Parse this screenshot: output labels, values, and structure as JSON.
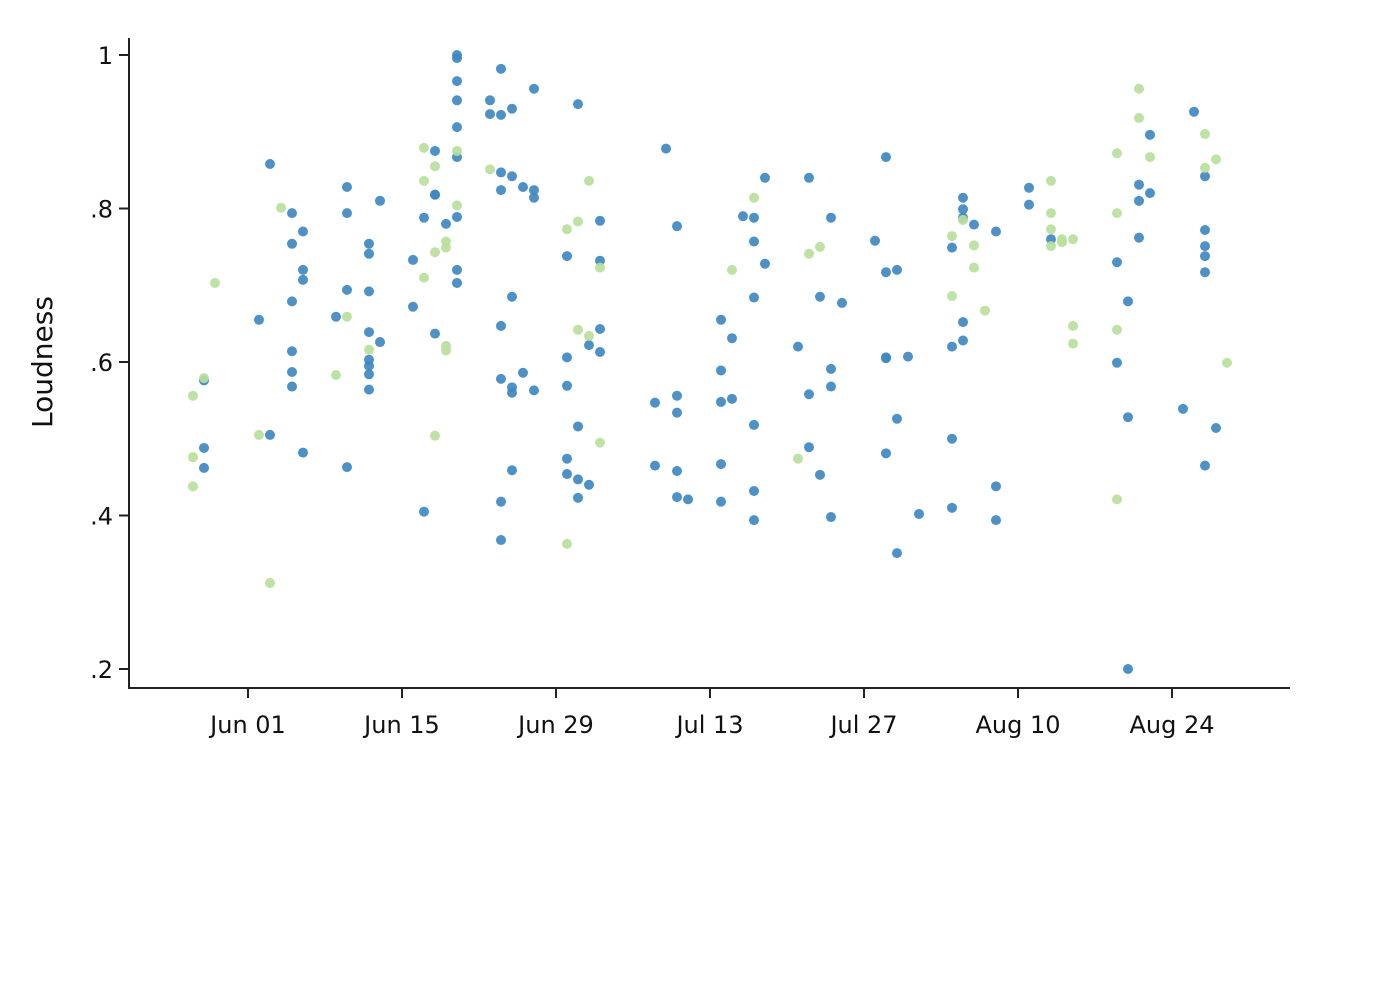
{
  "chart_data": {
    "type": "scatter",
    "title": "",
    "xlabel": "",
    "ylabel": "Loudness",
    "ylim": [
      0.175,
      1.025
    ],
    "yticks": [
      {
        "value": 1.0,
        "label": "1"
      },
      {
        "value": 0.8,
        "label": ".8"
      },
      {
        "value": 0.6,
        "label": ".6"
      },
      {
        "value": 0.4,
        "label": ".4"
      },
      {
        "value": 0.2,
        "label": ".2"
      }
    ],
    "xaxis": {
      "unit": "days since Jun 01",
      "range_days": [
        -11,
        95
      ],
      "ticks": [
        {
          "day": 0,
          "label": "Jun 01"
        },
        {
          "day": 14,
          "label": "Jun 15"
        },
        {
          "day": 28,
          "label": "Jun 29"
        },
        {
          "day": 42,
          "label": "Jul 13"
        },
        {
          "day": 56,
          "label": "Jul 27"
        },
        {
          "day": 70,
          "label": "Aug 10"
        },
        {
          "day": 84,
          "label": "Aug 24"
        }
      ]
    },
    "grid": false,
    "legend": null,
    "colors": {
      "blue": "#3f88c1",
      "green": "#b9e09c",
      "axis": "#222222"
    },
    "series": [
      {
        "name": "blue",
        "color": "#3f88c1",
        "points": [
          [
            -4,
            0.576
          ],
          [
            -4,
            0.488
          ],
          [
            -4,
            0.462
          ],
          [
            1,
            0.655
          ],
          [
            2,
            0.858
          ],
          [
            2,
            0.505
          ],
          [
            4,
            0.794
          ],
          [
            4,
            0.754
          ],
          [
            5,
            0.77
          ],
          [
            5,
            0.72
          ],
          [
            5,
            0.707
          ],
          [
            4,
            0.679
          ],
          [
            4,
            0.614
          ],
          [
            4,
            0.587
          ],
          [
            4,
            0.568
          ],
          [
            5,
            0.482
          ],
          [
            8,
            0.659
          ],
          [
            9,
            0.828
          ],
          [
            9,
            0.794
          ],
          [
            9,
            0.694
          ],
          [
            9,
            0.463
          ],
          [
            11,
            0.754
          ],
          [
            11,
            0.741
          ],
          [
            11,
            0.692
          ],
          [
            11,
            0.639
          ],
          [
            11,
            0.603
          ],
          [
            11,
            0.595
          ],
          [
            11,
            0.584
          ],
          [
            11,
            0.564
          ],
          [
            12,
            0.81
          ],
          [
            12,
            0.626
          ],
          [
            15,
            0.733
          ],
          [
            15,
            0.672
          ],
          [
            16,
            0.788
          ],
          [
            16,
            0.405
          ],
          [
            17,
            0.875
          ],
          [
            17,
            0.818
          ],
          [
            17,
            0.818
          ],
          [
            17,
            0.637
          ],
          [
            18,
            0.78
          ],
          [
            19,
            1.0
          ],
          [
            19,
            0.996
          ],
          [
            19,
            0.966
          ],
          [
            19,
            0.941
          ],
          [
            19,
            0.906
          ],
          [
            19,
            0.867
          ],
          [
            19,
            0.789
          ],
          [
            19,
            0.72
          ],
          [
            19,
            0.703
          ],
          [
            22,
            0.941
          ],
          [
            22,
            0.923
          ],
          [
            23,
            0.982
          ],
          [
            23,
            0.922
          ],
          [
            23,
            0.847
          ],
          [
            23,
            0.824
          ],
          [
            23,
            0.647
          ],
          [
            23,
            0.578
          ],
          [
            23,
            0.418
          ],
          [
            23,
            0.368
          ],
          [
            24,
            0.93
          ],
          [
            24,
            0.842
          ],
          [
            24,
            0.685
          ],
          [
            24,
            0.567
          ],
          [
            24,
            0.56
          ],
          [
            24,
            0.459
          ],
          [
            25,
            0.828
          ],
          [
            25,
            0.586
          ],
          [
            26,
            0.956
          ],
          [
            26,
            0.824
          ],
          [
            26,
            0.814
          ],
          [
            26,
            0.563
          ],
          [
            29,
            0.738
          ],
          [
            29,
            0.606
          ],
          [
            29,
            0.569
          ],
          [
            29,
            0.474
          ],
          [
            29,
            0.454
          ],
          [
            30,
            0.936
          ],
          [
            30,
            0.516
          ],
          [
            30,
            0.447
          ],
          [
            30,
            0.423
          ],
          [
            31,
            0.622
          ],
          [
            31,
            0.44
          ],
          [
            32,
            0.784
          ],
          [
            32,
            0.732
          ],
          [
            32,
            0.643
          ],
          [
            32,
            0.613
          ],
          [
            37,
            0.547
          ],
          [
            37,
            0.465
          ],
          [
            38,
            0.878
          ],
          [
            39,
            0.777
          ],
          [
            39,
            0.556
          ],
          [
            39,
            0.534
          ],
          [
            39,
            0.458
          ],
          [
            39,
            0.424
          ],
          [
            40,
            0.421
          ],
          [
            43,
            0.655
          ],
          [
            43,
            0.589
          ],
          [
            43,
            0.548
          ],
          [
            43,
            0.467
          ],
          [
            43,
            0.418
          ],
          [
            44,
            0.631
          ],
          [
            44,
            0.552
          ],
          [
            45,
            0.79
          ],
          [
            46,
            0.788
          ],
          [
            46,
            0.757
          ],
          [
            46,
            0.684
          ],
          [
            46,
            0.518
          ],
          [
            46,
            0.432
          ],
          [
            46,
            0.394
          ],
          [
            47,
            0.84
          ],
          [
            47,
            0.728
          ],
          [
            50,
            0.62
          ],
          [
            51,
            0.84
          ],
          [
            51,
            0.558
          ],
          [
            51,
            0.489
          ],
          [
            52,
            0.685
          ],
          [
            52,
            0.453
          ],
          [
            53,
            0.788
          ],
          [
            53,
            0.591
          ],
          [
            53,
            0.568
          ],
          [
            53,
            0.398
          ],
          [
            54,
            0.677
          ],
          [
            57,
            0.758
          ],
          [
            58,
            0.867
          ],
          [
            58,
            0.717
          ],
          [
            58,
            0.606
          ],
          [
            58,
            0.605
          ],
          [
            58,
            0.481
          ],
          [
            59,
            0.72
          ],
          [
            59,
            0.526
          ],
          [
            59,
            0.351
          ],
          [
            60,
            0.607
          ],
          [
            61,
            0.402
          ],
          [
            64,
            0.749
          ],
          [
            64,
            0.62
          ],
          [
            64,
            0.5
          ],
          [
            64,
            0.41
          ],
          [
            65,
            0.814
          ],
          [
            65,
            0.799
          ],
          [
            65,
            0.788
          ],
          [
            65,
            0.652
          ],
          [
            65,
            0.628
          ],
          [
            66,
            0.779
          ],
          [
            68,
            0.77
          ],
          [
            68,
            0.438
          ],
          [
            68,
            0.394
          ],
          [
            71,
            0.827
          ],
          [
            71,
            0.805
          ],
          [
            73,
            0.76
          ],
          [
            79,
            0.73
          ],
          [
            79,
            0.599
          ],
          [
            80,
            0.679
          ],
          [
            80,
            0.528
          ],
          [
            80,
            0.2
          ],
          [
            81,
            0.831
          ],
          [
            81,
            0.81
          ],
          [
            81,
            0.762
          ],
          [
            82,
            0.896
          ],
          [
            82,
            0.82
          ],
          [
            85,
            0.539
          ],
          [
            86,
            0.926
          ],
          [
            87,
            0.842
          ],
          [
            87,
            0.772
          ],
          [
            87,
            0.751
          ],
          [
            87,
            0.738
          ],
          [
            87,
            0.717
          ],
          [
            87,
            0.465
          ],
          [
            88,
            0.514
          ]
        ]
      },
      {
        "name": "green",
        "color": "#b9e09c",
        "points": [
          [
            -5,
            0.556
          ],
          [
            -4,
            0.579
          ],
          [
            -5,
            0.476
          ],
          [
            -5,
            0.438
          ],
          [
            -3,
            0.703
          ],
          [
            1,
            0.505
          ],
          [
            2,
            0.312
          ],
          [
            3,
            0.801
          ],
          [
            8,
            0.583
          ],
          [
            9,
            0.659
          ],
          [
            11,
            0.616
          ],
          [
            16,
            0.879
          ],
          [
            16,
            0.836
          ],
          [
            16,
            0.71
          ],
          [
            17,
            0.855
          ],
          [
            17,
            0.743
          ],
          [
            17,
            0.504
          ],
          [
            18,
            0.757
          ],
          [
            18,
            0.749
          ],
          [
            18,
            0.621
          ],
          [
            18,
            0.615
          ],
          [
            19,
            0.875
          ],
          [
            19,
            0.804
          ],
          [
            22,
            0.851
          ],
          [
            29,
            0.773
          ],
          [
            29,
            0.363
          ],
          [
            30,
            0.783
          ],
          [
            30,
            0.642
          ],
          [
            31,
            0.836
          ],
          [
            31,
            0.634
          ],
          [
            32,
            0.723
          ],
          [
            32,
            0.495
          ],
          [
            44,
            0.72
          ],
          [
            46,
            0.814
          ],
          [
            50,
            0.474
          ],
          [
            51,
            0.741
          ],
          [
            52,
            0.75
          ],
          [
            64,
            0.764
          ],
          [
            64,
            0.686
          ],
          [
            65,
            0.785
          ],
          [
            66,
            0.752
          ],
          [
            66,
            0.723
          ],
          [
            67,
            0.667
          ],
          [
            73,
            0.836
          ],
          [
            73,
            0.794
          ],
          [
            73,
            0.773
          ],
          [
            73,
            0.751
          ],
          [
            74,
            0.76
          ],
          [
            74,
            0.756
          ],
          [
            75,
            0.76
          ],
          [
            75,
            0.647
          ],
          [
            75,
            0.624
          ],
          [
            79,
            0.872
          ],
          [
            79,
            0.794
          ],
          [
            79,
            0.642
          ],
          [
            79,
            0.421
          ],
          [
            81,
            0.956
          ],
          [
            81,
            0.918
          ],
          [
            82,
            0.867
          ],
          [
            87,
            0.897
          ],
          [
            87,
            0.853
          ],
          [
            88,
            0.864
          ],
          [
            89,
            0.599
          ]
        ]
      }
    ]
  }
}
